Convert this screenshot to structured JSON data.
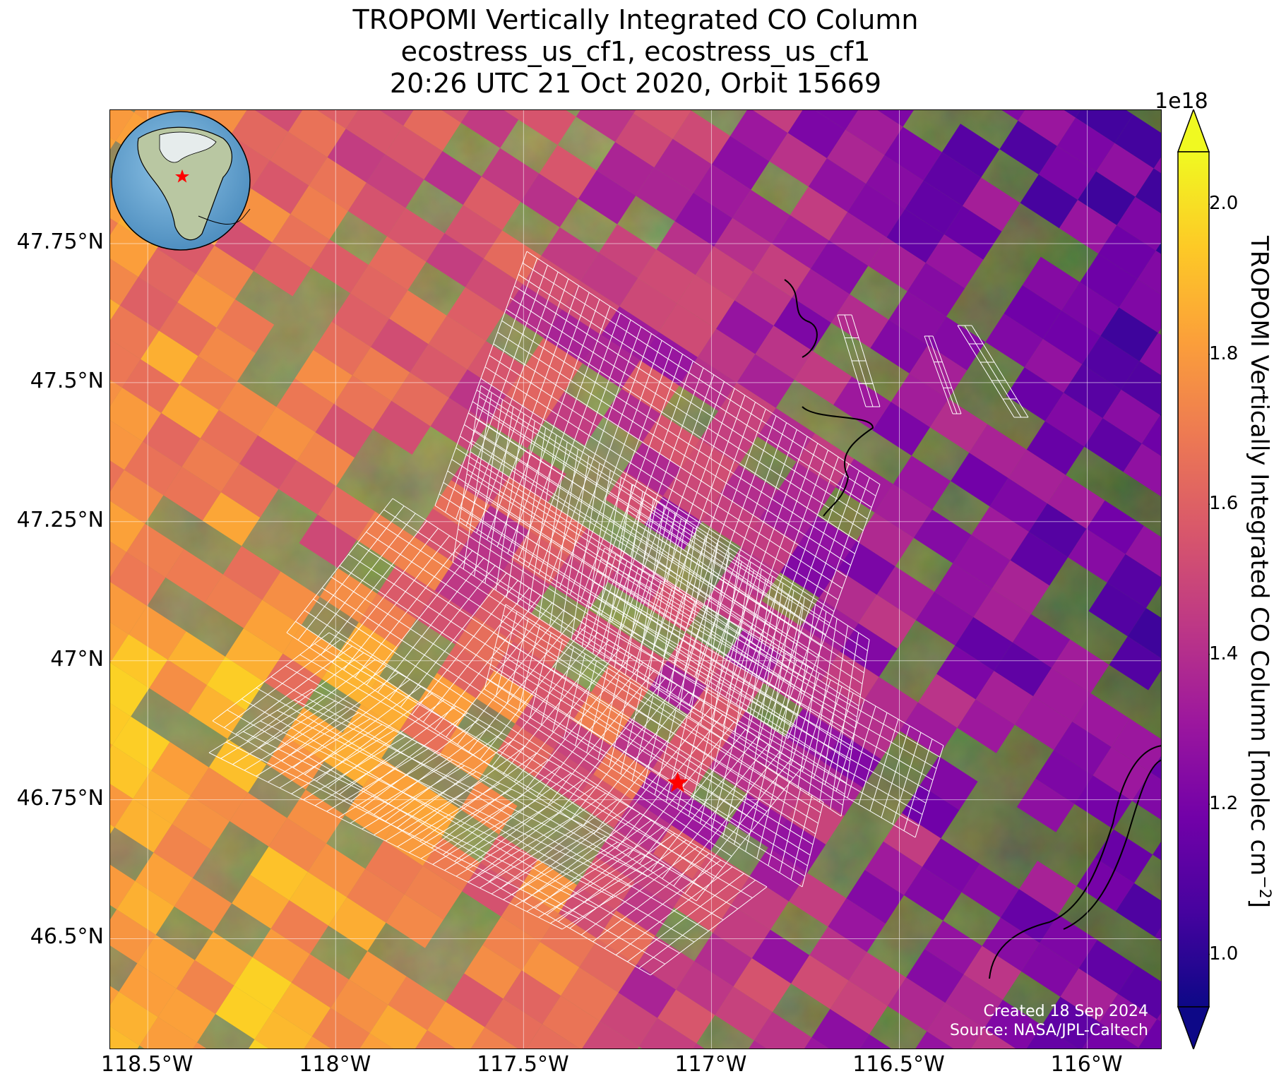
{
  "title": {
    "line1": "TROPOMI Vertically Integrated CO Column",
    "line2": "ecostress_us_cf1, ecostress_us_cf1",
    "line3": "20:26 UTC 21 Oct 2020, Orbit 15669"
  },
  "map": {
    "lon_range": [
      -118.6,
      -115.8
    ],
    "lat_range": [
      46.3,
      47.99
    ],
    "gridlines": true,
    "lat_ticks": [
      {
        "value": 47.75,
        "label": "47.75°N"
      },
      {
        "value": 47.5,
        "label": "47.5°N"
      },
      {
        "value": 47.25,
        "label": "47.25°N"
      },
      {
        "value": 47.0,
        "label": "47°N"
      },
      {
        "value": 46.75,
        "label": "46.75°N"
      },
      {
        "value": 46.5,
        "label": "46.5°N"
      }
    ],
    "lon_ticks": [
      {
        "value": -118.5,
        "label": "118.5°W"
      },
      {
        "value": -118.0,
        "label": "118°W"
      },
      {
        "value": -117.5,
        "label": "117.5°W"
      },
      {
        "value": -117.0,
        "label": "117°W"
      },
      {
        "value": -116.5,
        "label": "116.5°W"
      },
      {
        "value": -116.0,
        "label": "116°W"
      }
    ],
    "site_marker": {
      "lon": -117.09,
      "lat": 46.78,
      "symbol": "red-star"
    },
    "basemap": "satellite imagery (agricultural fields, forested hills)"
  },
  "colorbar": {
    "label": "TROPOMI Vertically Integrated CO Column [molec cm",
    "label_sup": "−2",
    "label_end": "]",
    "exponent": "1e18",
    "colormap": "plasma",
    "vmin": 0.93,
    "vmax": 2.07,
    "extend": "both",
    "ticks": [
      {
        "value": 1.0,
        "label": "1.0"
      },
      {
        "value": 1.2,
        "label": "1.2"
      },
      {
        "value": 1.4,
        "label": "1.4"
      },
      {
        "value": 1.6,
        "label": "1.6"
      },
      {
        "value": 1.8,
        "label": "1.8"
      },
      {
        "value": 2.0,
        "label": "2.0"
      }
    ]
  },
  "inset": {
    "type": "globe",
    "marker": "red-star"
  },
  "credit": {
    "line1": "Created 18 Sep 2024",
    "line2": "Source: NASA/JPL-Caltech"
  },
  "colors": {
    "plasma": [
      "#0d0887",
      "#46039f",
      "#7201a8",
      "#9c179e",
      "#bd3786",
      "#d8576b",
      "#ed7953",
      "#fb9f3a",
      "#fdca26",
      "#f0f921"
    ],
    "site_marker": "#ff0000",
    "footprint_grid": "#ffffff"
  }
}
